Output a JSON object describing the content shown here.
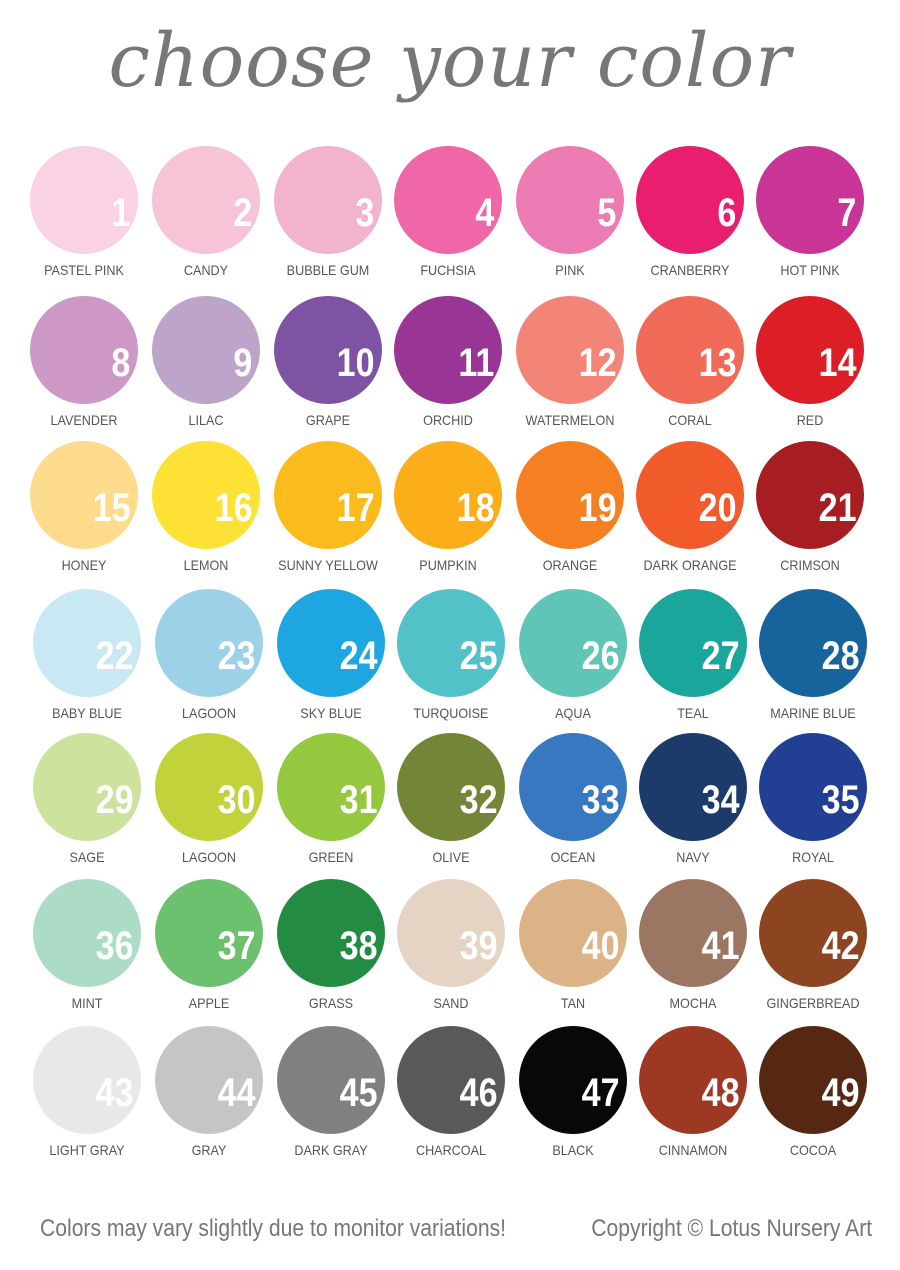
{
  "title": "choose your color",
  "colors": [
    {
      "number": "1",
      "name": "PASTEL PINK",
      "hex": "#f9d3e3"
    },
    {
      "number": "2",
      "name": "CANDY",
      "hex": "#f6c3d7"
    },
    {
      "number": "3",
      "name": "BUBBLE GUM",
      "hex": "#f2b3cf"
    },
    {
      "number": "4",
      "name": "FUCHSIA",
      "hex": "#ef67a6"
    },
    {
      "number": "5",
      "name": "PINK",
      "hex": "#ec7bb3"
    },
    {
      "number": "6",
      "name": "CRANBERRY",
      "hex": "#e91e6f"
    },
    {
      "number": "7",
      "name": "HOT PINK",
      "hex": "#c93596"
    },
    {
      "number": "8",
      "name": "LAVENDER",
      "hex": "#cd98c6"
    },
    {
      "number": "9",
      "name": "LILAC",
      "hex": "#bda4c9"
    },
    {
      "number": "10",
      "name": "GRAPE",
      "hex": "#7f53a3"
    },
    {
      "number": "11",
      "name": "ORCHID",
      "hex": "#993594"
    },
    {
      "number": "12",
      "name": "WATERMELON",
      "hex": "#f38578"
    },
    {
      "number": "13",
      "name": "CORAL",
      "hex": "#f06b57"
    },
    {
      "number": "14",
      "name": "RED",
      "hex": "#dc1f26"
    },
    {
      "number": "15",
      "name": "HONEY",
      "hex": "#fddb8c"
    },
    {
      "number": "16",
      "name": "LEMON",
      "hex": "#fde135"
    },
    {
      "number": "17",
      "name": "SUNNY YELLOW",
      "hex": "#fcbb1c"
    },
    {
      "number": "18",
      "name": "PUMPKIN",
      "hex": "#fbad1a"
    },
    {
      "number": "19",
      "name": "ORANGE",
      "hex": "#f58021"
    },
    {
      "number": "20",
      "name": "DARK ORANGE",
      "hex": "#f15a2b"
    },
    {
      "number": "21",
      "name": "CRIMSON",
      "hex": "#a61e22"
    },
    {
      "number": "22",
      "name": "BABY BLUE",
      "hex": "#c8e8f3"
    },
    {
      "number": "23",
      "name": "LAGOON",
      "hex": "#9dd1e8"
    },
    {
      "number": "24",
      "name": "SKY BLUE",
      "hex": "#1ea6e0"
    },
    {
      "number": "25",
      "name": "TURQUOISE",
      "hex": "#52c1c8"
    },
    {
      "number": "26",
      "name": "AQUA",
      "hex": "#5fc6b7"
    },
    {
      "number": "27",
      "name": "TEAL",
      "hex": "#1ba69b"
    },
    {
      "number": "28",
      "name": "MARINE BLUE",
      "hex": "#17639c"
    },
    {
      "number": "29",
      "name": "SAGE",
      "hex": "#cde29e"
    },
    {
      "number": "30",
      "name": "LAGOON",
      "hex": "#c2d23a"
    },
    {
      "number": "31",
      "name": "GREEN",
      "hex": "#94c83e"
    },
    {
      "number": "32",
      "name": "OLIVE",
      "hex": "#738536"
    },
    {
      "number": "33",
      "name": "OCEAN",
      "hex": "#3778c0"
    },
    {
      "number": "34",
      "name": "NAVY",
      "hex": "#1c3b6b"
    },
    {
      "number": "35",
      "name": "ROYAL",
      "hex": "#213f93"
    },
    {
      "number": "36",
      "name": "MINT",
      "hex": "#acdcc6"
    },
    {
      "number": "37",
      "name": "APPLE",
      "hex": "#6cc16e"
    },
    {
      "number": "38",
      "name": "GRASS",
      "hex": "#248c42"
    },
    {
      "number": "39",
      "name": "SAND",
      "hex": "#e5d4c3"
    },
    {
      "number": "40",
      "name": "TAN",
      "hex": "#dcb287"
    },
    {
      "number": "41",
      "name": "MOCHA",
      "hex": "#9b7662"
    },
    {
      "number": "42",
      "name": "GINGERBREAD",
      "hex": "#8c4421"
    },
    {
      "number": "43",
      "name": "LIGHT GRAY",
      "hex": "#e8e8e9"
    },
    {
      "number": "44",
      "name": "GRAY",
      "hex": "#c5c5c5"
    },
    {
      "number": "45",
      "name": "DARK GRAY",
      "hex": "#80807e"
    },
    {
      "number": "46",
      "name": "CHARCOAL",
      "hex": "#59585a"
    },
    {
      "number": "47",
      "name": "BLACK",
      "hex": "#070809"
    },
    {
      "number": "48",
      "name": "CINNAMON",
      "hex": "#9d3823"
    },
    {
      "number": "49",
      "name": "COCOA",
      "hex": "#562813"
    }
  ],
  "footer": {
    "disclaimer": "Colors may vary slightly due to monitor variations!",
    "copyright": "Copyright © Lotus Nursery Art"
  }
}
